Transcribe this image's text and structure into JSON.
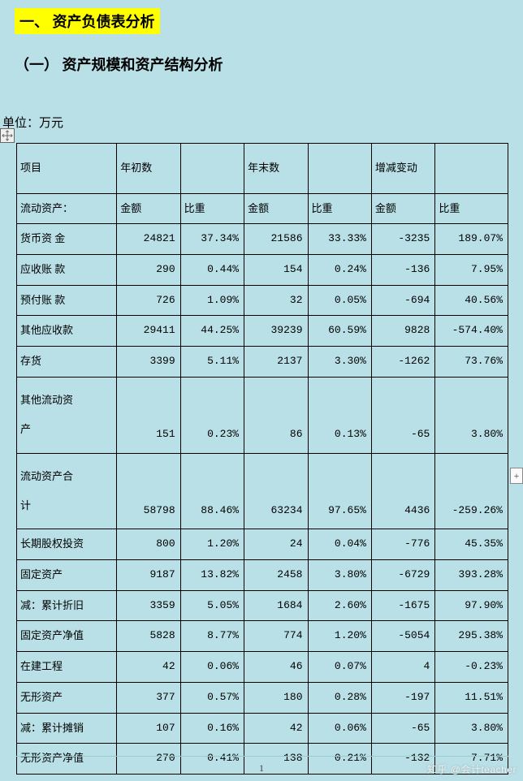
{
  "heading1": "一、  资产负债表分析",
  "heading2": "（一）  资产规模和资产结构分析",
  "unit": "单位：万元",
  "pageNumber": "1",
  "watermark": "知乎 @会计teacher",
  "table": {
    "background": "#b9e0e7",
    "border_color": "#000000",
    "font_size": 13,
    "header1": {
      "c0": "项目",
      "c1": "年初数",
      "c2": "",
      "c3": "年末数",
      "c4": "",
      "c5": "增减变动",
      "c6": ""
    },
    "header2": {
      "c0": "流动资产：",
      "c1": "金额",
      "c2": "比重",
      "c3": "金额",
      "c4": "比重",
      "c5": "金额",
      "c6": "比重"
    },
    "rows": [
      {
        "c0": "货币资 金",
        "c1": "24821",
        "c2": "37.34%",
        "c3": "21586",
        "c4": "33.33%",
        "c5": "-3235",
        "c6": "189.07%"
      },
      {
        "c0": "应收账 款",
        "c1": "290",
        "c2": "0.44%",
        "c3": "154",
        "c4": "0.24%",
        "c5": "-136",
        "c6": "7.95%"
      },
      {
        "c0": "预付账 款",
        "c1": "726",
        "c2": "1.09%",
        "c3": "32",
        "c4": "0.05%",
        "c5": "-694",
        "c6": "40.56%"
      },
      {
        "c0": "其他应收款",
        "c1": "29411",
        "c2": "44.25%",
        "c3": "39239",
        "c4": "60.59%",
        "c5": "9828",
        "c6": "-574.40%"
      },
      {
        "c0": "存货",
        "c1": "3399",
        "c2": "5.11%",
        "c3": "2137",
        "c4": "3.30%",
        "c5": "-1262",
        "c6": "73.76%"
      },
      {
        "c0": "其他流动资\n产",
        "c1": "151",
        "c2": "0.23%",
        "c3": "86",
        "c4": "0.13%",
        "c5": "-65",
        "c6": "3.80%",
        "multi": true
      },
      {
        "c0": "流动资产合\n计",
        "c1": "58798",
        "c2": "88.46%",
        "c3": "63234",
        "c4": "97.65%",
        "c5": "4436",
        "c6": "-259.26%",
        "multi": true
      },
      {
        "c0": "长期股权投资",
        "c1": "800",
        "c2": "1.20%",
        "c3": "24",
        "c4": "0.04%",
        "c5": "-776",
        "c6": "45.35%"
      },
      {
        "c0": "固定资产",
        "c1": "9187",
        "c2": "13.82%",
        "c3": "2458",
        "c4": "3.80%",
        "c5": "-6729",
        "c6": "393.28%"
      },
      {
        "c0": "减：累计折旧",
        "c1": "3359",
        "c2": "5.05%",
        "c3": "1684",
        "c4": "2.60%",
        "c5": "-1675",
        "c6": "97.90%"
      },
      {
        "c0": "固定资产净值",
        "c1": "5828",
        "c2": "8.77%",
        "c3": "774",
        "c4": "1.20%",
        "c5": "-5054",
        "c6": "295.38%"
      },
      {
        "c0": "在建工程",
        "c1": "42",
        "c2": "0.06%",
        "c3": "46",
        "c4": "0.07%",
        "c5": "4",
        "c6": "-0.23%"
      },
      {
        "c0": "无形资产",
        "c1": "377",
        "c2": "0.57%",
        "c3": "180",
        "c4": "0.28%",
        "c5": "-197",
        "c6": "11.51%"
      },
      {
        "c0": "减：累计摊销",
        "c1": "107",
        "c2": "0.16%",
        "c3": "42",
        "c4": "0.06%",
        "c5": "-65",
        "c6": "3.80%"
      },
      {
        "c0": "无形资产净值",
        "c1": "270",
        "c2": "0.41%",
        "c3": "138",
        "c4": "0.21%",
        "c5": "-132",
        "c6": "7.71%"
      }
    ]
  }
}
